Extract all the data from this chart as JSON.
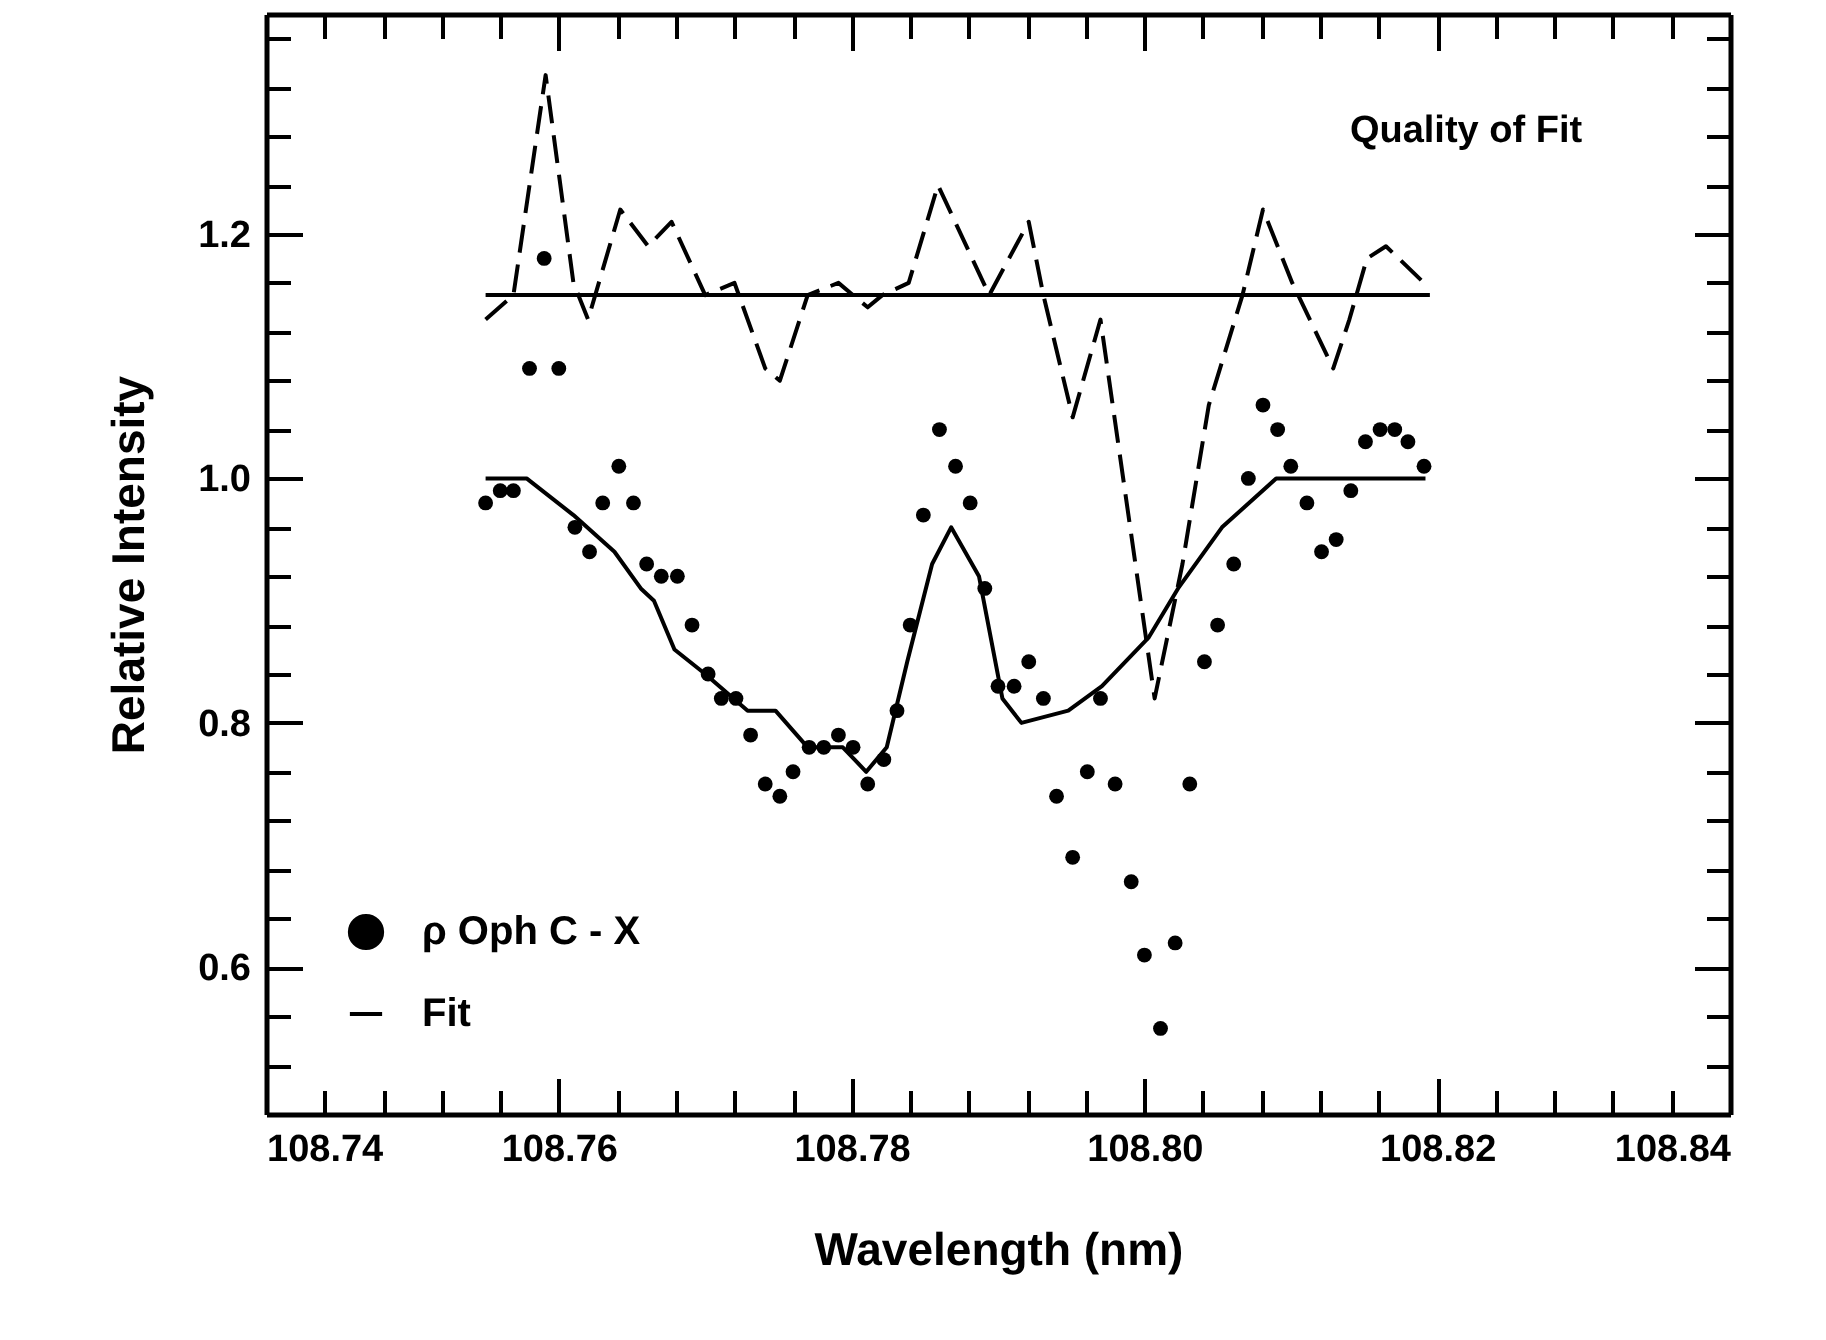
{
  "chart_data": {
    "type": "scatter",
    "xlabel": "Wavelength (nm)",
    "ylabel": "Relative Intensity",
    "xlim": [
      108.74,
      108.84
    ],
    "ylim": [
      0.48,
      1.38
    ],
    "xticks": [
      108.74,
      108.76,
      108.78,
      {
        "value": 108.8,
        "label": "108.80"
      },
      {
        "value": 108.82,
        "label": "108.82"
      },
      108.84
    ],
    "yticks": [
      0.6,
      0.8,
      {
        "value": 1,
        "label": "1.0"
      },
      1.2
    ],
    "annotations": [
      "Quality of Fit"
    ],
    "legend": "bottom left",
    "series": [
      {
        "name": "ρ Oph C - X",
        "marker": "circle",
        "color": "#000000",
        "x": [
          108.755,
          108.756,
          108.7569,
          108.758,
          108.759,
          108.76,
          108.7611,
          108.7621,
          108.763,
          108.7641,
          108.7651,
          108.766,
          108.767,
          108.7681,
          108.7691,
          108.7702,
          108.7711,
          108.7721,
          108.7731,
          108.7741,
          108.7751,
          108.776,
          108.7771,
          108.7781,
          108.7791,
          108.7801,
          108.7811,
          108.7822,
          108.7831,
          108.784,
          108.7849,
          108.786,
          108.7871,
          108.7881,
          108.7891,
          108.79,
          108.7911,
          108.7921,
          108.7931,
          108.794,
          108.7951,
          108.7961,
          108.797,
          108.798,
          108.7991,
          108.8,
          108.8011,
          108.8021,
          108.8031,
          108.8041,
          108.805,
          108.8061,
          108.8071,
          108.8081,
          108.8091,
          108.81,
          108.8111,
          108.8121,
          108.8131,
          108.8141,
          108.8151,
          108.8161,
          108.8171,
          108.818,
          108.8191
        ],
        "values": [
          0.98,
          0.99,
          0.99,
          1.09,
          1.18,
          1.09,
          0.96,
          0.94,
          0.98,
          1.01,
          0.98,
          0.93,
          0.92,
          0.92,
          0.88,
          0.84,
          0.82,
          0.82,
          0.79,
          0.75,
          0.74,
          0.76,
          0.78,
          0.78,
          0.79,
          0.78,
          0.75,
          0.77,
          0.81,
          0.88,
          0.97,
          1.04,
          1.01,
          0.98,
          0.91,
          0.83,
          0.83,
          0.85,
          0.82,
          0.74,
          0.69,
          0.76,
          0.82,
          0.75,
          0.67,
          0.61,
          0.55,
          0.62,
          0.75,
          0.85,
          0.88,
          0.93,
          1.0,
          1.06,
          1.04,
          1.01,
          0.98,
          0.94,
          0.95,
          0.99,
          1.03,
          1.04,
          1.04,
          1.03,
          1.01
        ]
      },
      {
        "name": "Fit",
        "type": "line",
        "color": "#000000",
        "line_style": "solid",
        "x": [
          108.755,
          108.7578,
          108.761,
          108.7638,
          108.7656,
          108.7665,
          108.7679,
          108.77,
          108.7729,
          108.7748,
          108.777,
          108.7794,
          108.781,
          108.7824,
          108.7838,
          108.7855,
          108.7868,
          108.7887,
          108.7903,
          108.7916,
          108.7948,
          108.7971,
          108.8003,
          108.8023,
          108.8053,
          108.809,
          108.8112,
          108.8192
        ],
        "values": [
          1.0,
          1.0,
          0.97,
          0.94,
          0.91,
          0.9,
          0.86,
          0.84,
          0.81,
          0.81,
          0.78,
          0.78,
          0.76,
          0.78,
          0.85,
          0.93,
          0.96,
          0.92,
          0.82,
          0.8,
          0.81,
          0.83,
          0.87,
          0.91,
          0.96,
          1.0,
          1.0,
          1.0
        ]
      },
      {
        "type": "line",
        "color": "#000000",
        "line_style": "dashed",
        "x": [
          108.755,
          108.7569,
          108.7591,
          108.761,
          108.762,
          108.7642,
          108.7661,
          108.7677,
          108.77,
          108.772,
          108.7741,
          108.7751,
          108.777,
          108.7791,
          108.7811,
          108.7821,
          108.7839,
          108.7859,
          108.7894,
          108.7921,
          108.7931,
          108.7951,
          108.797,
          108.8007,
          108.8026,
          108.8044,
          108.8067,
          108.8081,
          108.8101,
          108.8129,
          108.814,
          108.8152,
          108.8165,
          108.8191
        ],
        "values": [
          1.13,
          1.15,
          1.33,
          1.16,
          1.13,
          1.22,
          1.19,
          1.21,
          1.15,
          1.16,
          1.09,
          1.08,
          1.15,
          1.16,
          1.14,
          1.15,
          1.16,
          1.24,
          1.15,
          1.21,
          1.15,
          1.05,
          1.13,
          0.82,
          0.93,
          1.06,
          1.15,
          1.22,
          1.16,
          1.09,
          1.13,
          1.18,
          1.19,
          1.16
        ]
      },
      {
        "type": "line",
        "color": "#000000",
        "line_style": "solid",
        "x": [
          108.755,
          108.8195
        ],
        "values": [
          1.15,
          1.15
        ]
      }
    ]
  }
}
